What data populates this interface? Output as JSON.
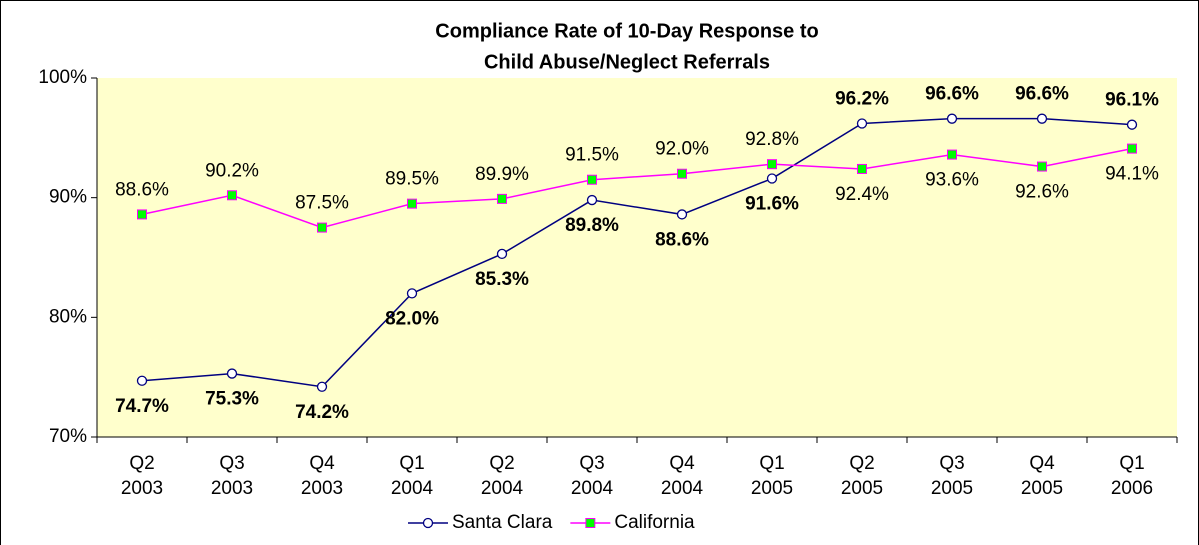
{
  "chart_data": {
    "type": "line",
    "title": [
      "Compliance Rate of 10-Day Response to",
      "Child Abuse/Neglect Referrals"
    ],
    "categories": [
      [
        "Q2",
        "2003"
      ],
      [
        "Q3",
        "2003"
      ],
      [
        "Q4",
        "2003"
      ],
      [
        "Q1",
        "2004"
      ],
      [
        "Q2",
        "2004"
      ],
      [
        "Q3",
        "2004"
      ],
      [
        "Q4",
        "2004"
      ],
      [
        "Q1",
        "2005"
      ],
      [
        "Q2",
        "2005"
      ],
      [
        "Q3",
        "2005"
      ],
      [
        "Q4",
        "2005"
      ],
      [
        "Q1",
        "2006"
      ]
    ],
    "series": [
      {
        "name": "Santa Clara",
        "color": "#000080",
        "marker": "circle",
        "marker_color": "#ffffff",
        "bold_labels": true,
        "values": [
          74.7,
          75.3,
          74.2,
          82.0,
          85.3,
          89.8,
          88.6,
          91.6,
          96.2,
          96.6,
          96.6,
          96.1
        ],
        "value_labels": [
          "74.7%",
          "75.3%",
          "74.2%",
          "82.0%",
          "85.3%",
          "89.8%",
          "88.6%",
          "91.6%",
          "96.2%",
          "96.6%",
          "96.6%",
          "96.1%"
        ]
      },
      {
        "name": "California",
        "color": "#ff00ff",
        "marker": "square",
        "marker_color": "#00ff00",
        "bold_labels": false,
        "values": [
          88.6,
          90.2,
          87.5,
          89.5,
          89.9,
          91.5,
          92.0,
          92.8,
          92.4,
          93.6,
          92.6,
          94.1
        ],
        "value_labels": [
          "88.6%",
          "90.2%",
          "87.5%",
          "89.5%",
          "89.9%",
          "91.5%",
          "92.0%",
          "92.8%",
          "92.4%",
          "93.6%",
          "92.6%",
          "94.1%"
        ]
      }
    ],
    "ylim": [
      70,
      100
    ],
    "yticks": [
      {
        "value": 70,
        "label": "70%"
      },
      {
        "value": 80,
        "label": "80%"
      },
      {
        "value": 90,
        "label": "90%"
      },
      {
        "value": 100,
        "label": "100%"
      }
    ],
    "plot_background": "#ffffcc",
    "legend": "bottom"
  }
}
